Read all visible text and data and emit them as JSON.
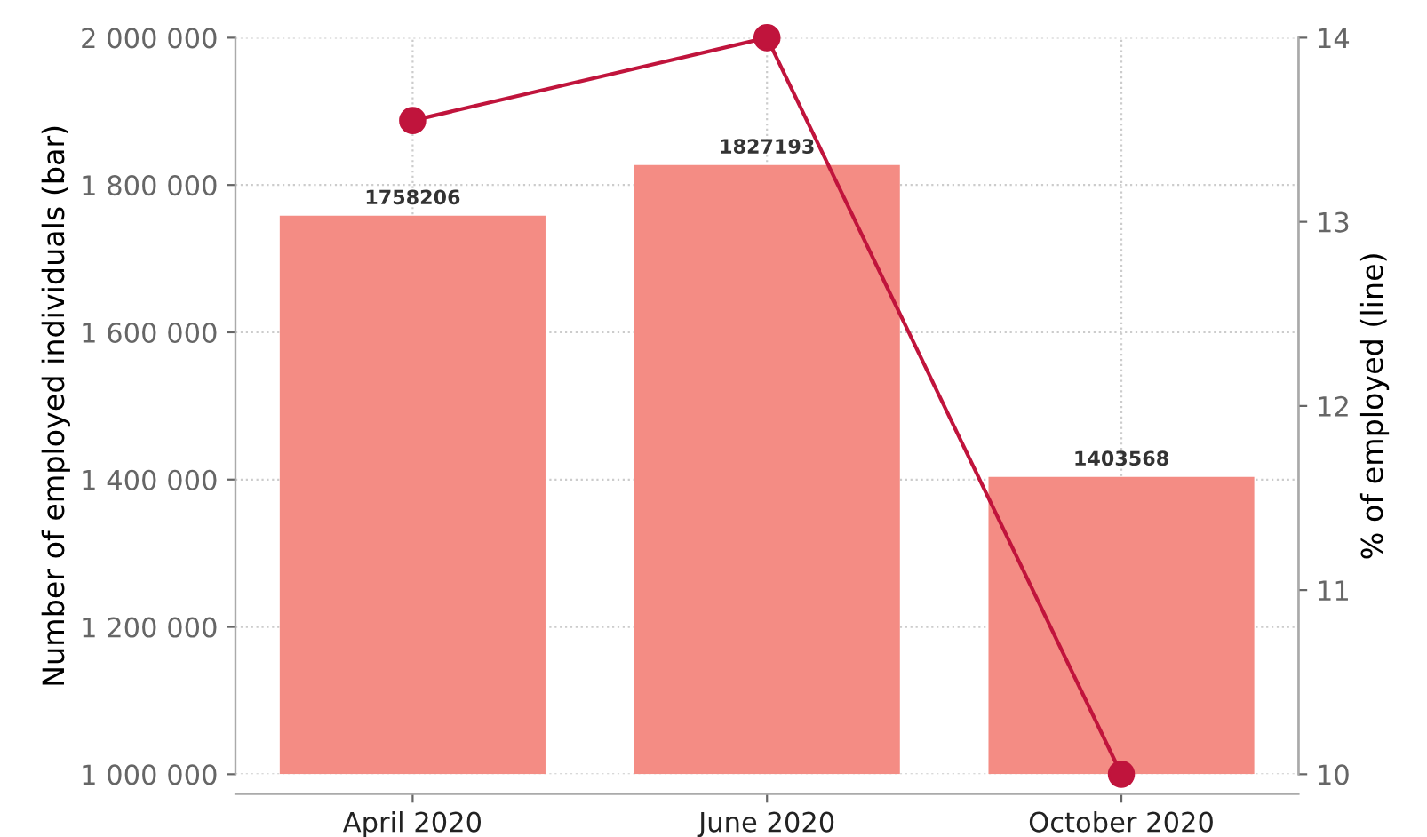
{
  "chart_data": {
    "type": "bar",
    "categories": [
      "April 2020",
      "June 2020",
      "October 2020"
    ],
    "ylabel": "Number of employed individuals (bar)",
    "y2label": "% of employed (line)",
    "series": [
      {
        "color": "#f48c84",
        "values": [
          1758206,
          1827193,
          1403568
        ],
        "value_labels": [
          "1758206",
          "1827193",
          "1403568"
        ]
      },
      {
        "type": "line",
        "axis": "y2",
        "color": "#c0143c",
        "values": [
          13.55,
          14.0,
          10.0
        ]
      }
    ],
    "marker": "circle",
    "line_style": "solid",
    "grid": true,
    "ylim": [
      1000000,
      2000000
    ],
    "yticks": [
      {
        "value": 1000000,
        "label": "1 000 000"
      },
      {
        "value": 1200000,
        "label": "1 200 000"
      },
      {
        "value": 1400000,
        "label": "1 400 000"
      },
      {
        "value": 1600000,
        "label": "1 600 000"
      },
      {
        "value": 1800000,
        "label": "1 800 000"
      },
      {
        "value": 2000000,
        "label": "2 000 000"
      }
    ],
    "y2lim": [
      10,
      14
    ],
    "y2ticks": [
      10,
      11,
      12,
      13,
      14
    ]
  }
}
